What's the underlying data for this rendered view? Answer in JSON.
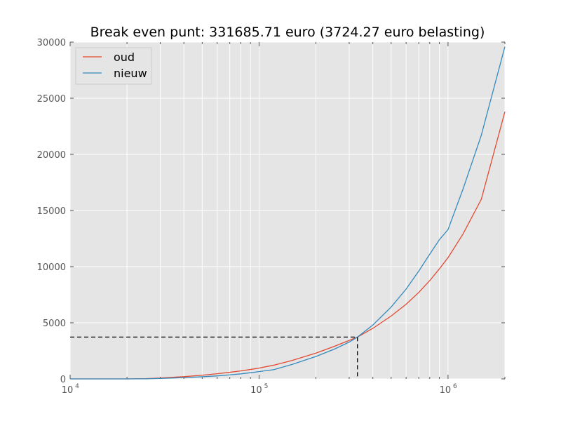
{
  "chart_data": {
    "type": "line",
    "title": "Break even punt: 331685.71 euro (3724.27 euro belasting)",
    "xlabel": "",
    "ylabel": "",
    "xscale": "log",
    "xlim": [
      10000,
      2000000
    ],
    "ylim": [
      0,
      30000
    ],
    "x_ticks": [
      10000,
      100000,
      1000000
    ],
    "x_tick_labels": [
      {
        "base": "10",
        "exp": "4"
      },
      {
        "base": "10",
        "exp": "5"
      },
      {
        "base": "10",
        "exp": "6"
      }
    ],
    "y_ticks": [
      0,
      5000,
      10000,
      15000,
      20000,
      25000,
      30000
    ],
    "y_tick_labels": [
      "0",
      "5000",
      "10000",
      "15000",
      "20000",
      "25000",
      "30000"
    ],
    "grid": true,
    "legend_position": "top-left",
    "x": [
      10000,
      20000,
      25000,
      30000,
      40000,
      50000,
      60000,
      70000,
      80000,
      90000,
      100000,
      120000,
      150000,
      200000,
      250000,
      300000,
      331685.71,
      400000,
      500000,
      600000,
      700000,
      800000,
      900000,
      1000000,
      1200000,
      1500000,
      2000000
    ],
    "series": [
      {
        "name": "oud",
        "color": "#e24a33",
        "values": [
          0,
          0,
          20,
          80,
          200,
          330,
          460,
          590,
          710,
          840,
          960,
          1230,
          1650,
          2300,
          2900,
          3430,
          3724.27,
          4500,
          5600,
          6650,
          7700,
          8750,
          9800,
          10800,
          12900,
          16000,
          23800
        ]
      },
      {
        "name": "nieuw",
        "color": "#348abd",
        "values": [
          0,
          0,
          10,
          40,
          110,
          190,
          270,
          360,
          450,
          550,
          650,
          830,
          1300,
          2000,
          2650,
          3280,
          3724.27,
          4800,
          6400,
          8000,
          9600,
          11100,
          12400,
          13300,
          16900,
          21700,
          29600
        ]
      }
    ],
    "break_even": {
      "x": 331685.71,
      "y": 3724.27
    }
  },
  "colors": {
    "plot_background": "#e5e5e5",
    "grid": "#ffffff",
    "marker_lines": "#000000"
  }
}
